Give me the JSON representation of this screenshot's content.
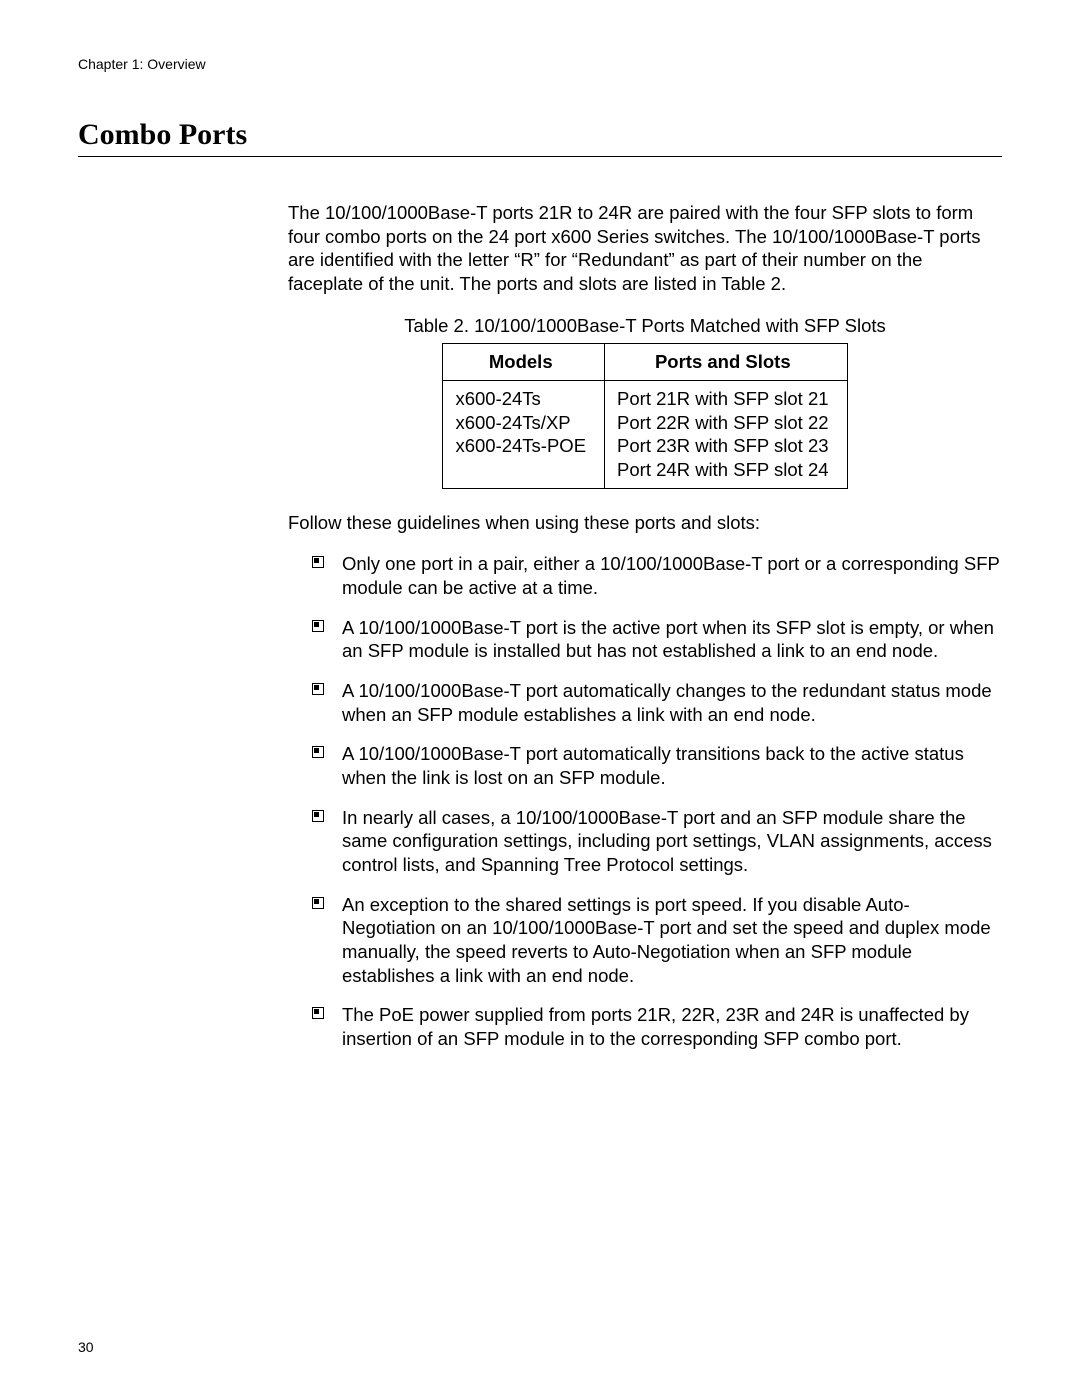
{
  "chapter": "Chapter 1: Overview",
  "section_title": "Combo Ports",
  "intro_paragraph": "The 10/100/1000Base-T ports 21R to 24R are paired with the four SFP slots to form four combo ports on the 24 port x600 Series switches. The 10/100/1000Base-T ports are identified with the letter “R” for “Redundant” as part of their number on the faceplate of the unit. The ports and slots are listed in Table 2.",
  "table_caption": "Table 2. 10/100/1000Base-T Ports Matched with SFP Slots",
  "table": {
    "headers": [
      "Models",
      "Ports and Slots"
    ],
    "row": {
      "models": [
        "x600-24Ts",
        "x600-24Ts/XP",
        "x600-24Ts-POE"
      ],
      "ports": [
        "Port 21R with SFP slot 21",
        "Port 22R with SFP slot 22",
        "Port 23R with SFP slot 23",
        "Port 24R with SFP slot 24"
      ]
    }
  },
  "guidelines_intro": "Follow these guidelines when using these ports and slots:",
  "guidelines": [
    "Only one port in a pair, either a 10/100/1000Base-T port or a corresponding SFP module can be active at a time.",
    "A 10/100/1000Base-T port is the active port when its SFP slot is empty, or when an SFP module is installed but has not established a link to an end node.",
    "A 10/100/1000Base-T port automatically changes to the redundant status mode when an SFP module establishes a link with an end node.",
    "A 10/100/1000Base-T port automatically transitions back to the active status when the link is lost on an SFP module.",
    "In nearly all cases, a 10/100/1000Base-T port and an SFP module share the same configuration settings, including port settings, VLAN assignments, access control lists, and Spanning Tree Protocol settings.",
    "An exception to the shared settings is port speed. If you disable Auto-Negotiation on an 10/100/1000Base-T port and set the speed and duplex mode manually, the speed reverts to Auto-Negotiation when an SFP module establishes a link with an end node.",
    "The PoE power supplied from ports 21R, 22R, 23R and 24R is unaffected by insertion of an SFP module in to the corresponding SFP combo port."
  ],
  "page_number": "30",
  "colors": {
    "text": "#000000",
    "background": "#ffffff",
    "rule": "#000000"
  },
  "typography": {
    "body_font": "Arial",
    "title_font": "Times New Roman",
    "title_size_pt": 22,
    "body_size_pt": 14,
    "chapter_size_pt": 10
  }
}
